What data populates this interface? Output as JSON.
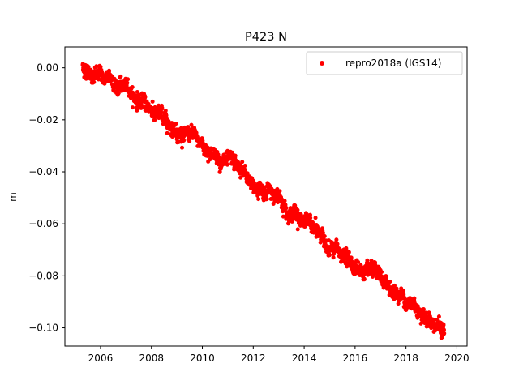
{
  "chart_data": {
    "type": "scatter",
    "title": "P423 N",
    "xlabel": "",
    "ylabel": "m",
    "xlim": [
      2004.6,
      2020.4
    ],
    "ylim": [
      -0.107,
      0.008
    ],
    "xticks": [
      2006,
      2008,
      2010,
      2012,
      2014,
      2016,
      2018,
      2020
    ],
    "yticks": [
      0.0,
      -0.02,
      -0.04,
      -0.06,
      -0.08,
      -0.1
    ],
    "ytick_labels": [
      "0.00",
      "−0.02",
      "−0.04",
      "−0.06",
      "−0.08",
      "−0.10"
    ],
    "grid": false,
    "legend_position": "top-right",
    "series": [
      {
        "name": "repro2018a (IGS14)",
        "color": "#ff0000",
        "marker": "circle",
        "trend_points": [
          {
            "x": 2005.3,
            "y": 0.0
          },
          {
            "x": 2006.0,
            "y": -0.003
          },
          {
            "x": 2007.0,
            "y": -0.008
          },
          {
            "x": 2008.0,
            "y": -0.016
          },
          {
            "x": 2009.0,
            "y": -0.023
          },
          {
            "x": 2010.0,
            "y": -0.03
          },
          {
            "x": 2011.0,
            "y": -0.037
          },
          {
            "x": 2012.0,
            "y": -0.045
          },
          {
            "x": 2013.0,
            "y": -0.05
          },
          {
            "x": 2014.0,
            "y": -0.058
          },
          {
            "x": 2015.0,
            "y": -0.069
          },
          {
            "x": 2016.0,
            "y": -0.076
          },
          {
            "x": 2017.0,
            "y": -0.083
          },
          {
            "x": 2018.0,
            "y": -0.089
          },
          {
            "x": 2019.0,
            "y": -0.096
          },
          {
            "x": 2019.5,
            "y": -0.101
          }
        ],
        "scatter_sd": 0.0013
      }
    ]
  }
}
